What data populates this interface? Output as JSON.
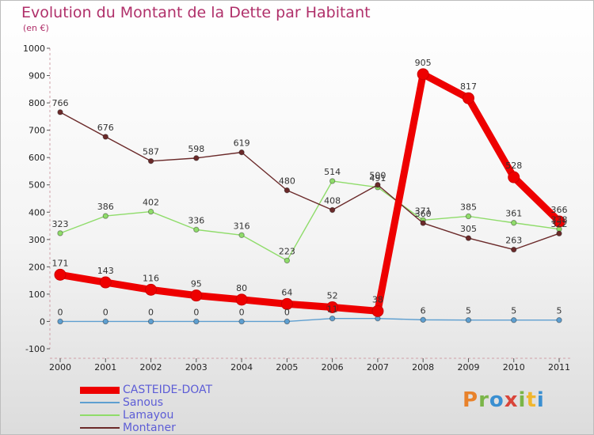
{
  "header": {
    "title": "Evolution du Montant de la Dette par Habitant",
    "subtitle": "(en €)"
  },
  "brand": {
    "logo_text": "Proxiti",
    "logo_colors": [
      "#e8822b",
      "#7ab548",
      "#3a8fd1",
      "#d9453a",
      "#7ab548",
      "#f0b62e",
      "#3a8fd1"
    ]
  },
  "colors": {
    "title": "#b0306a",
    "legend_text": "#5d5dd6"
  },
  "chart_data": {
    "type": "line",
    "title": "Evolution du Montant de la Dette par Habitant",
    "subtitle": "(en €)",
    "xlabel": "",
    "ylabel": "",
    "ylim": [
      -100,
      1000
    ],
    "yticks": [
      -100,
      0,
      100,
      200,
      300,
      400,
      500,
      600,
      700,
      800,
      900,
      1000
    ],
    "ytick_labels": [
      "-100",
      "0",
      "100",
      "200",
      "300",
      "400",
      "500",
      "600",
      "700",
      "800",
      "900",
      "1000"
    ],
    "categories": [
      "2000",
      "2001",
      "2002",
      "2003",
      "2004",
      "2005",
      "2006",
      "2007",
      "2008",
      "2009",
      "2010",
      "2011"
    ],
    "grid": false,
    "legend_position": "bottom-left",
    "series": [
      {
        "name": "CASTEIDE-DOAT",
        "color": "#ee0000",
        "values": [
          171,
          143,
          116,
          95,
          80,
          64,
          52,
          38,
          905,
          817,
          528,
          366
        ],
        "labels": [
          "171",
          "143",
          "116",
          "95",
          "80",
          "64",
          "52",
          "38",
          "905",
          "817",
          "528",
          "366"
        ],
        "emphasis": true
      },
      {
        "name": "Sanous",
        "color": "#5e9fd0",
        "values": [
          0,
          0,
          0,
          0,
          0,
          0,
          11,
          11,
          6,
          5,
          5,
          5
        ],
        "labels": [
          "0",
          "0",
          "0",
          "0",
          "0",
          "0",
          "11",
          "",
          "6",
          "5",
          "5",
          "5"
        ]
      },
      {
        "name": "Lamayou",
        "color": "#8fdc6a",
        "values": [
          323,
          386,
          402,
          336,
          316,
          223,
          514,
          491,
          371,
          385,
          361,
          338
        ],
        "labels": [
          "323",
          "386",
          "402",
          "336",
          "316",
          "223",
          "514",
          "491",
          "371",
          "385",
          "361",
          "338"
        ]
      },
      {
        "name": "Montaner",
        "color": "#6b2a2a",
        "values": [
          766,
          676,
          587,
          598,
          619,
          480,
          408,
          500,
          360,
          305,
          263,
          322
        ],
        "labels": [
          "766",
          "676",
          "587",
          "598",
          "619",
          "480",
          "408",
          "500",
          "360",
          "305",
          "263",
          "322"
        ]
      }
    ]
  }
}
